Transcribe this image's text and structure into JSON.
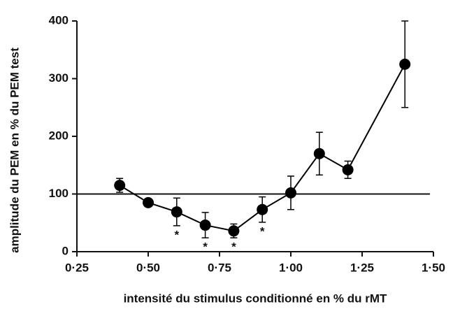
{
  "chart_data": {
    "type": "line",
    "xlabel": "intensité du stimulus conditionné en % du rMT",
    "ylabel": "amplitude du PEM en % du PEM test",
    "x": [
      0.4,
      0.5,
      0.6,
      0.7,
      0.8,
      0.9,
      1.0,
      1.1,
      1.2,
      1.4
    ],
    "series": [
      {
        "color": "#000000",
        "values": [
          115,
          85,
          69,
          46,
          36,
          73,
          102,
          170,
          142,
          325
        ],
        "errors": [
          12,
          4,
          24,
          22,
          12,
          22,
          29,
          37,
          15,
          75
        ]
      }
    ],
    "reference_line": 100,
    "annotations": [
      {
        "x": 0.6,
        "text": "*"
      },
      {
        "x": 0.7,
        "text": "*"
      },
      {
        "x": 0.8,
        "text": "*"
      },
      {
        "x": 0.9,
        "text": "*"
      }
    ],
    "xlim": [
      0.25,
      1.5
    ],
    "xticks": [
      {
        "value": 0.25,
        "label": "0·25"
      },
      {
        "value": 0.5,
        "label": "0·50"
      },
      {
        "value": 0.75,
        "label": "0·75"
      },
      {
        "value": 1.0,
        "label": "1·00"
      },
      {
        "value": 1.25,
        "label": "1·25"
      },
      {
        "value": 1.5,
        "label": "1·50"
      }
    ],
    "ylim": [
      0,
      400
    ],
    "yticks": [
      0,
      100,
      200,
      300,
      400
    ]
  }
}
